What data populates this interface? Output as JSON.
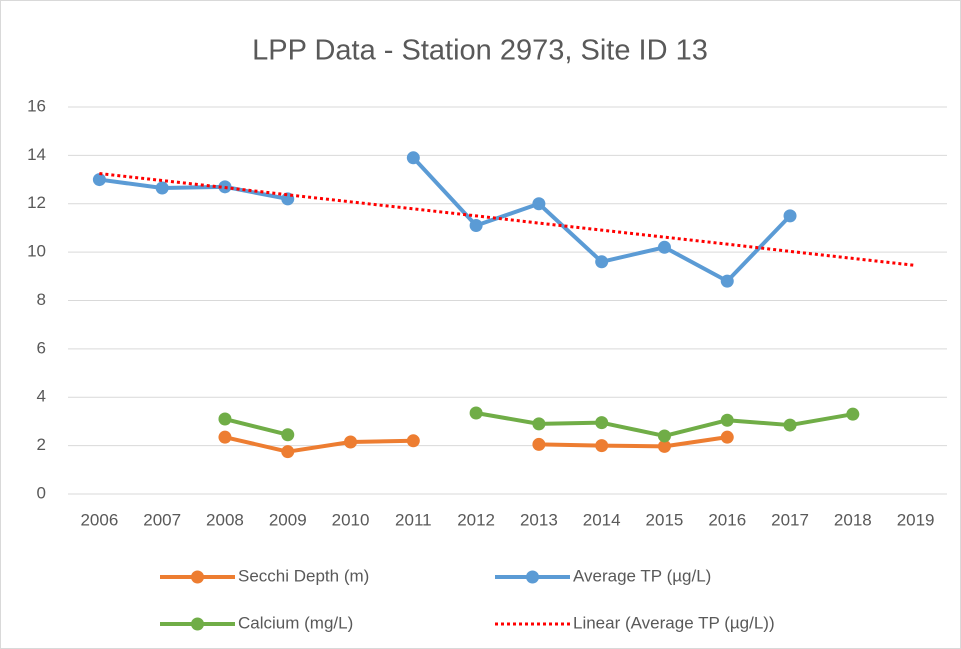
{
  "chart_data": {
    "type": "line",
    "title": "LPP Data - Station 2973, Site ID 13",
    "categories": [
      "2006",
      "2007",
      "2008",
      "2009",
      "2010",
      "2011",
      "2012",
      "2013",
      "2014",
      "2015",
      "2016",
      "2017",
      "2018",
      "2019"
    ],
    "series": [
      {
        "name": "Secchi Depth (m)",
        "color": "#ed7d31",
        "style": "solid",
        "markers": true,
        "values": [
          null,
          null,
          2.35,
          1.75,
          2.15,
          2.2,
          null,
          2.05,
          2.0,
          1.97,
          2.35,
          null,
          null,
          null
        ]
      },
      {
        "name": "Average TP (µg/L)",
        "color": "#5b9bd5",
        "style": "solid",
        "markers": true,
        "values": [
          13.0,
          12.65,
          12.7,
          12.2,
          null,
          13.9,
          11.1,
          12.0,
          9.6,
          10.2,
          8.8,
          11.5,
          null,
          null
        ]
      },
      {
        "name": "Calcium (mg/L)",
        "color": "#70ad47",
        "style": "solid",
        "markers": true,
        "values": [
          null,
          null,
          3.1,
          2.45,
          null,
          null,
          3.35,
          2.9,
          2.95,
          2.4,
          3.05,
          2.85,
          3.3,
          null
        ]
      },
      {
        "name": "Linear (Average TP (µg/L))",
        "color": "#ff0000",
        "style": "dotted",
        "markers": false,
        "values": [
          13.25,
          12.96,
          12.67,
          12.37,
          12.08,
          11.79,
          11.5,
          11.2,
          10.91,
          10.62,
          10.33,
          10.03,
          9.74,
          9.45
        ]
      }
    ],
    "ylim": [
      0,
      16
    ],
    "yticks": [
      0,
      2,
      4,
      6,
      8,
      10,
      12,
      14,
      16
    ],
    "grid": true,
    "legend": "bottom"
  }
}
